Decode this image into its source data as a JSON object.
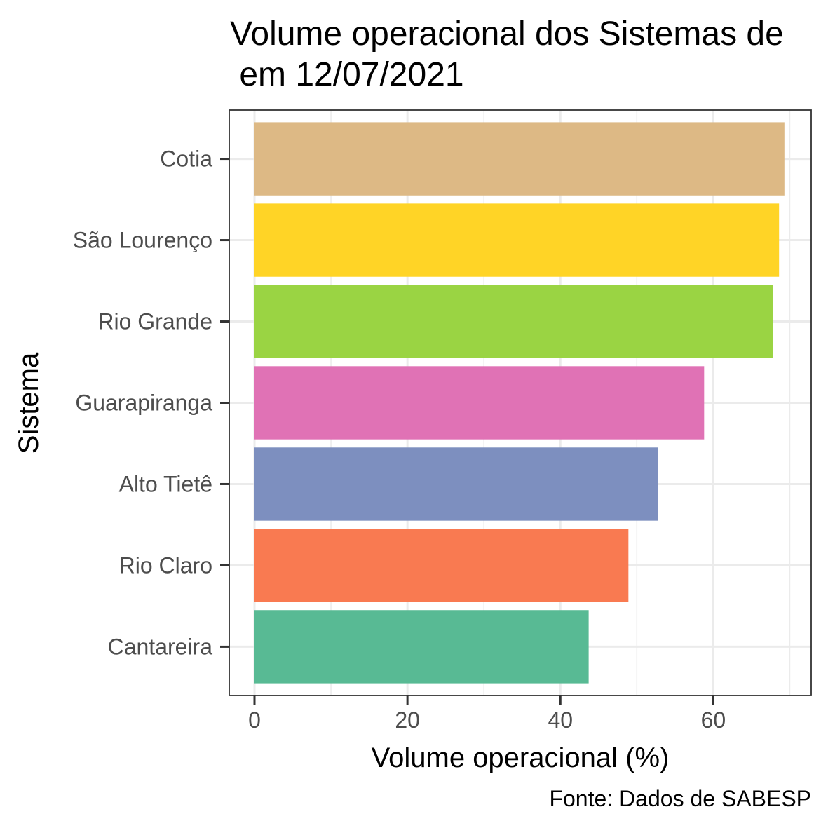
{
  "chart_data": {
    "type": "bar",
    "orientation": "horizontal",
    "title_lines": [
      "Volume operacional dos Sistemas de",
      " em 12/07/2021"
    ],
    "xlabel": "Volume operacional (%)",
    "ylabel": "Sistema",
    "caption": "Fonte: Dados de SABESP",
    "categories": [
      "Cotia",
      "São Lourenço",
      "Rio Grande",
      "Guarapiranga",
      "Alto Tietê",
      "Rio Claro",
      "Cantareira"
    ],
    "values": [
      69.3,
      68.6,
      67.8,
      58.8,
      52.8,
      48.9,
      43.7
    ],
    "colors": [
      "#DDB985",
      "#FFD426",
      "#9AD443",
      "#E072B5",
      "#7D8FBF",
      "#F97A51",
      "#58BA94"
    ],
    "xlim": [
      -3.3,
      72.8
    ],
    "xticks": [
      0,
      20,
      40,
      60
    ],
    "grid": true,
    "legend": "none"
  }
}
